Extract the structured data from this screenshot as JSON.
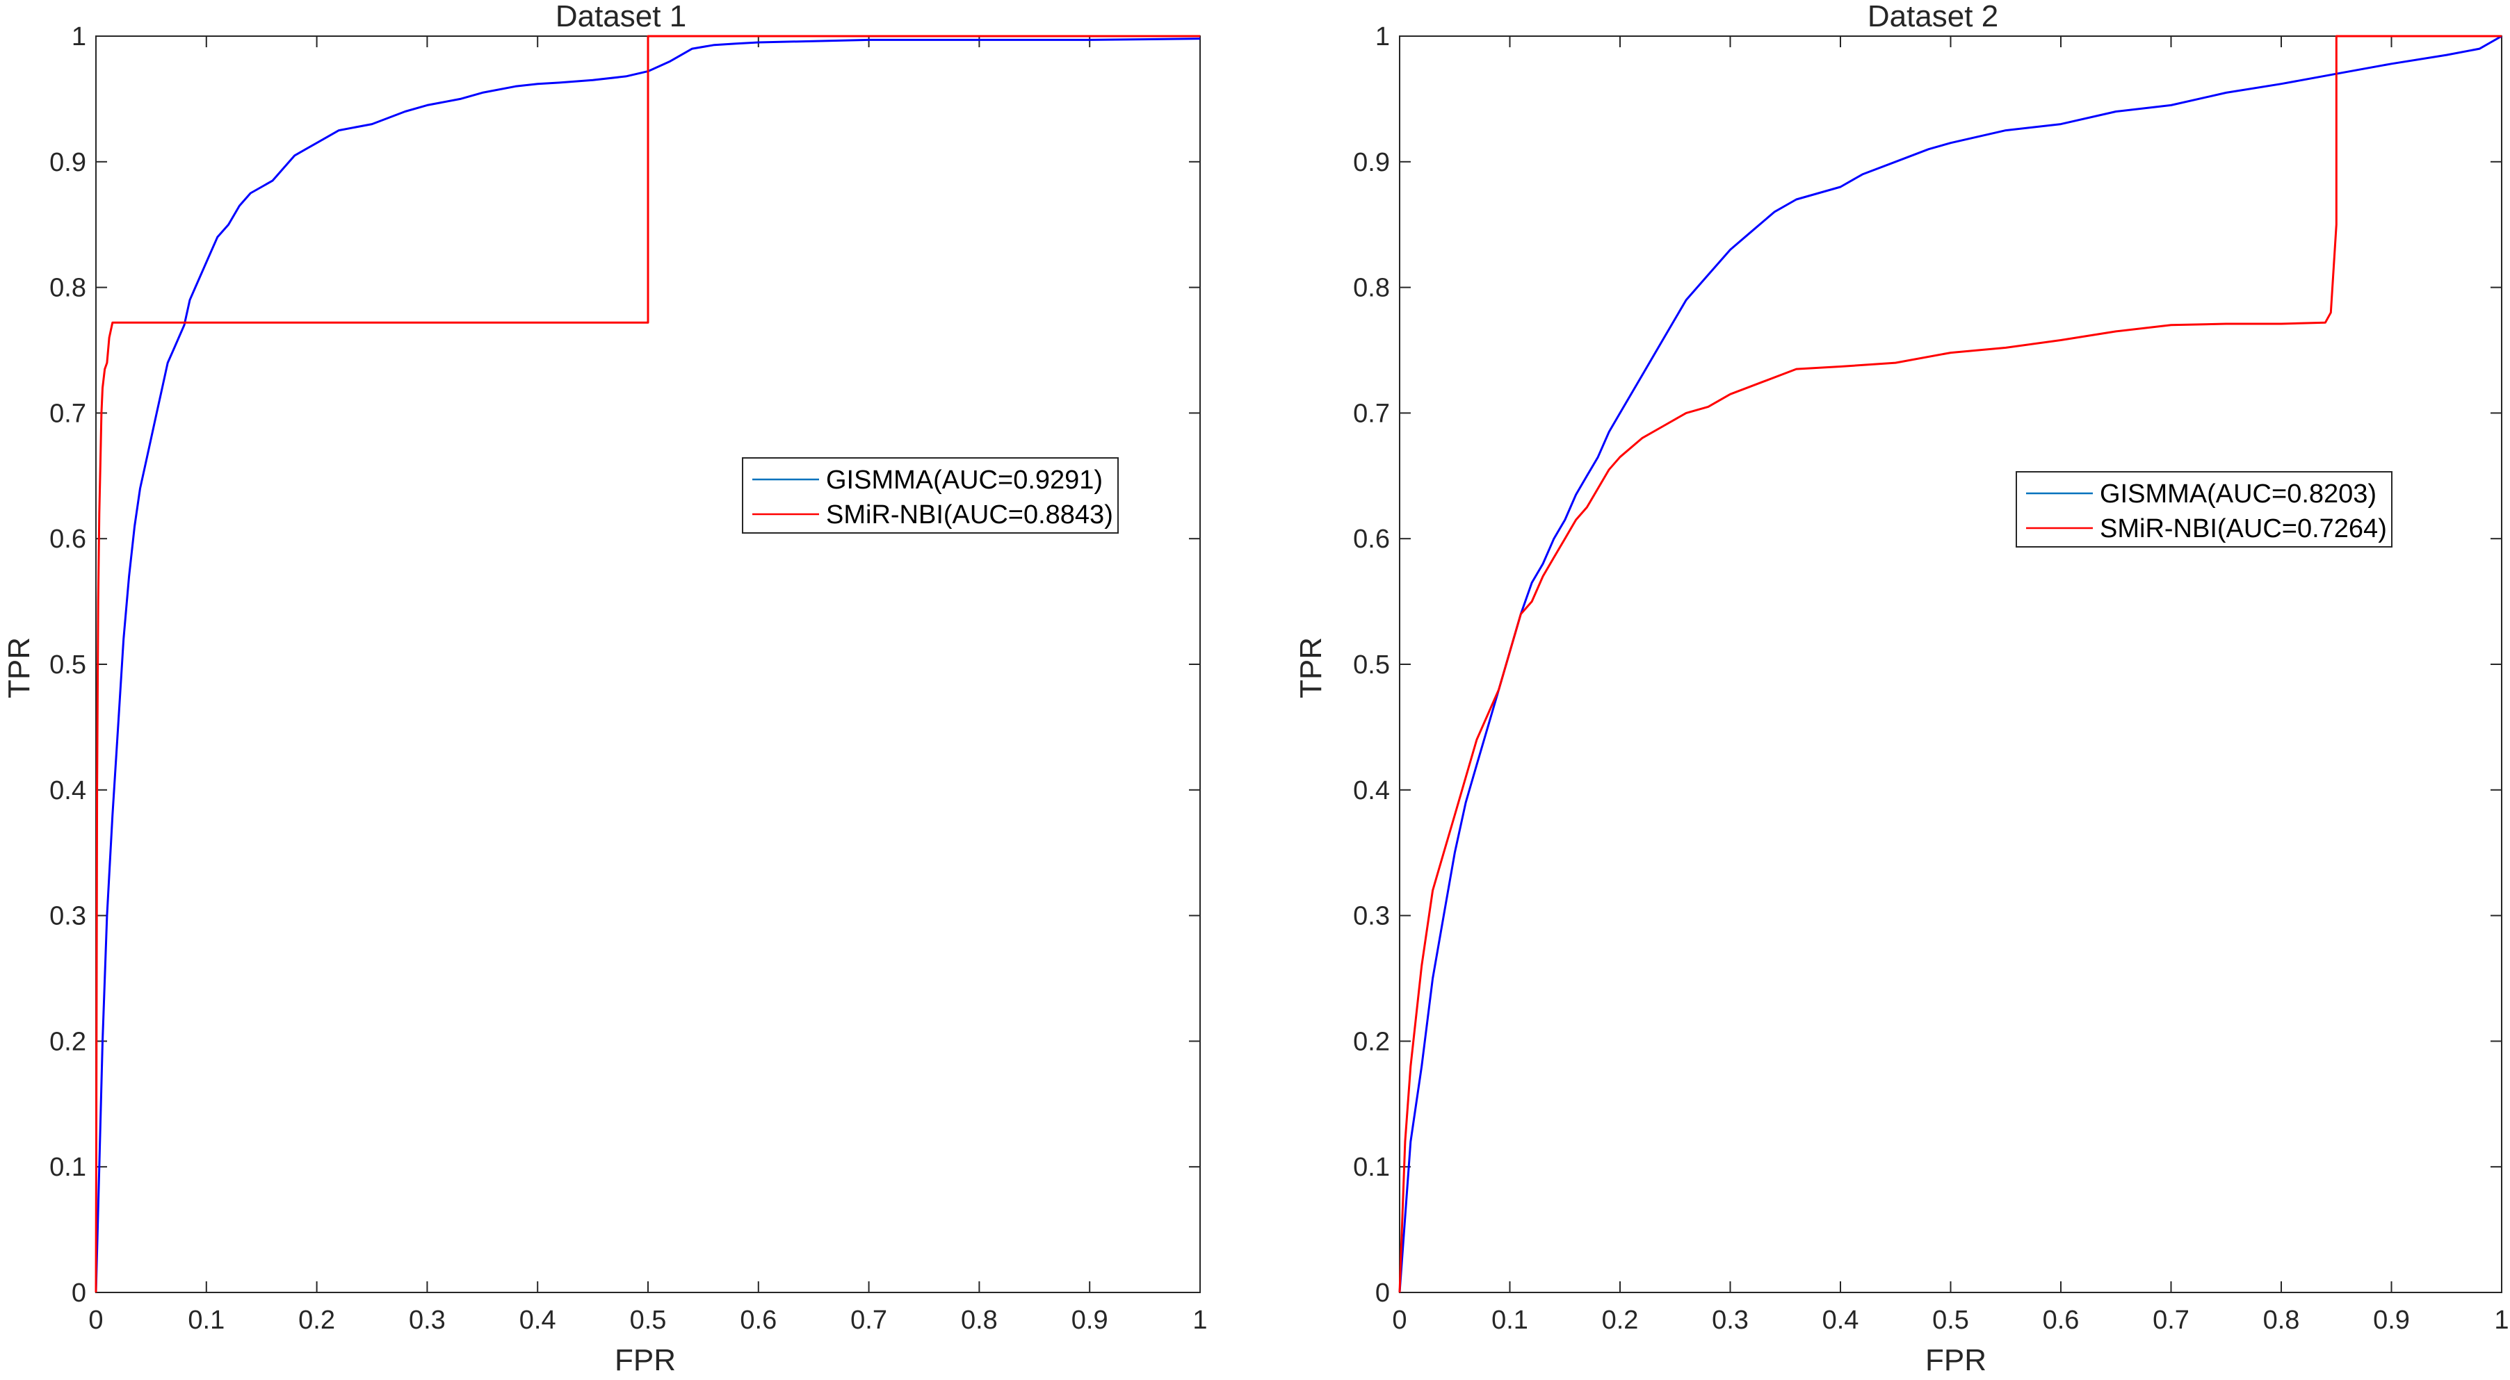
{
  "chart_data": [
    {
      "type": "line",
      "title": "Dataset 1",
      "xlabel": "FPR",
      "ylabel": "TPR",
      "xlim": [
        0,
        1
      ],
      "ylim": [
        0,
        1
      ],
      "xticks": [
        "0",
        "0.1",
        "0.2",
        "0.3",
        "0.4",
        "0.5",
        "0.6",
        "0.7",
        "0.8",
        "0.9",
        "1"
      ],
      "yticks": [
        "0",
        "0.1",
        "0.2",
        "0.3",
        "0.4",
        "0.5",
        "0.6",
        "0.7",
        "0.8",
        "0.9",
        "1"
      ],
      "grid": false,
      "legend_position": "center-right",
      "series": [
        {
          "name": "GISMMA(AUC=0.9291)",
          "color": "#0000ff",
          "legend_color": "#0072bd",
          "x": [
            0,
            0.003,
            0.006,
            0.01,
            0.015,
            0.02,
            0.025,
            0.03,
            0.035,
            0.04,
            0.045,
            0.05,
            0.055,
            0.06,
            0.065,
            0.07,
            0.075,
            0.08,
            0.085,
            0.09,
            0.1,
            0.11,
            0.12,
            0.13,
            0.14,
            0.15,
            0.16,
            0.17,
            0.18,
            0.19,
            0.2,
            0.22,
            0.25,
            0.28,
            0.3,
            0.33,
            0.35,
            0.38,
            0.4,
            0.42,
            0.45,
            0.48,
            0.5,
            0.52,
            0.54,
            0.56,
            0.58,
            0.6,
            0.65,
            0.7,
            0.8,
            0.9,
            1.0
          ],
          "y": [
            0,
            0.1,
            0.2,
            0.3,
            0.38,
            0.45,
            0.52,
            0.57,
            0.61,
            0.64,
            0.66,
            0.68,
            0.7,
            0.72,
            0.74,
            0.75,
            0.76,
            0.77,
            0.79,
            0.8,
            0.82,
            0.84,
            0.85,
            0.865,
            0.875,
            0.88,
            0.885,
            0.895,
            0.905,
            0.91,
            0.915,
            0.925,
            0.93,
            0.94,
            0.945,
            0.95,
            0.955,
            0.96,
            0.962,
            0.963,
            0.965,
            0.968,
            0.972,
            0.98,
            0.99,
            0.993,
            0.994,
            0.995,
            0.996,
            0.997,
            0.997,
            0.997,
            0.998
          ]
        },
        {
          "name": "SMiR-NBI(AUC=0.8843)",
          "color": "#ff0000",
          "legend_color": "#ff0000",
          "x": [
            0,
            0.001,
            0.002,
            0.003,
            0.004,
            0.005,
            0.006,
            0.008,
            0.01,
            0.012,
            0.015,
            0.5,
            0.5,
            1.0
          ],
          "y": [
            0,
            0.4,
            0.55,
            0.62,
            0.66,
            0.7,
            0.72,
            0.735,
            0.74,
            0.76,
            0.772,
            0.772,
            1.0,
            1.0
          ]
        }
      ]
    },
    {
      "type": "line",
      "title": "Dataset 2",
      "xlabel": "FPR",
      "ylabel": "TPR",
      "xlim": [
        0,
        1
      ],
      "ylim": [
        0,
        1
      ],
      "xticks": [
        "0",
        "0.1",
        "0.2",
        "0.3",
        "0.4",
        "0.5",
        "0.6",
        "0.7",
        "0.8",
        "0.9",
        "1"
      ],
      "yticks": [
        "0",
        "0.1",
        "0.2",
        "0.3",
        "0.4",
        "0.5",
        "0.6",
        "0.7",
        "0.8",
        "0.9",
        "1"
      ],
      "grid": false,
      "legend_position": "center-right",
      "series": [
        {
          "name": "GISMMA(AUC=0.8203)",
          "color": "#0000ff",
          "legend_color": "#0072bd",
          "x": [
            0,
            0.005,
            0.01,
            0.02,
            0.03,
            0.04,
            0.05,
            0.06,
            0.07,
            0.08,
            0.09,
            0.1,
            0.11,
            0.12,
            0.13,
            0.14,
            0.15,
            0.16,
            0.17,
            0.18,
            0.19,
            0.2,
            0.22,
            0.24,
            0.26,
            0.28,
            0.3,
            0.32,
            0.34,
            0.36,
            0.38,
            0.4,
            0.42,
            0.45,
            0.48,
            0.5,
            0.55,
            0.6,
            0.65,
            0.7,
            0.75,
            0.8,
            0.85,
            0.9,
            0.95,
            0.98,
            1.0
          ],
          "y": [
            0,
            0.06,
            0.12,
            0.18,
            0.25,
            0.3,
            0.35,
            0.39,
            0.42,
            0.45,
            0.48,
            0.51,
            0.54,
            0.565,
            0.58,
            0.6,
            0.615,
            0.635,
            0.65,
            0.665,
            0.685,
            0.7,
            0.73,
            0.76,
            0.79,
            0.81,
            0.83,
            0.845,
            0.86,
            0.87,
            0.875,
            0.88,
            0.89,
            0.9,
            0.91,
            0.915,
            0.925,
            0.93,
            0.94,
            0.945,
            0.955,
            0.962,
            0.97,
            0.978,
            0.985,
            0.99,
            1.0
          ]
        },
        {
          "name": "SMiR-NBI(AUC=0.7264)",
          "color": "#ff0000",
          "legend_color": "#ff0000",
          "x": [
            0,
            0.005,
            0.01,
            0.02,
            0.03,
            0.04,
            0.05,
            0.06,
            0.07,
            0.08,
            0.09,
            0.1,
            0.11,
            0.12,
            0.13,
            0.14,
            0.15,
            0.16,
            0.17,
            0.18,
            0.19,
            0.2,
            0.22,
            0.24,
            0.26,
            0.28,
            0.3,
            0.33,
            0.36,
            0.4,
            0.45,
            0.5,
            0.55,
            0.6,
            0.65,
            0.7,
            0.75,
            0.8,
            0.84,
            0.845,
            0.85,
            0.85,
            0.86,
            1.0
          ],
          "y": [
            0,
            0.12,
            0.18,
            0.26,
            0.32,
            0.35,
            0.38,
            0.41,
            0.44,
            0.46,
            0.48,
            0.51,
            0.54,
            0.55,
            0.57,
            0.585,
            0.6,
            0.615,
            0.625,
            0.64,
            0.655,
            0.665,
            0.68,
            0.69,
            0.7,
            0.705,
            0.715,
            0.725,
            0.735,
            0.737,
            0.74,
            0.748,
            0.752,
            0.758,
            0.765,
            0.77,
            0.771,
            0.771,
            0.772,
            0.78,
            0.85,
            1.0,
            1.0,
            1.0
          ]
        }
      ]
    }
  ]
}
